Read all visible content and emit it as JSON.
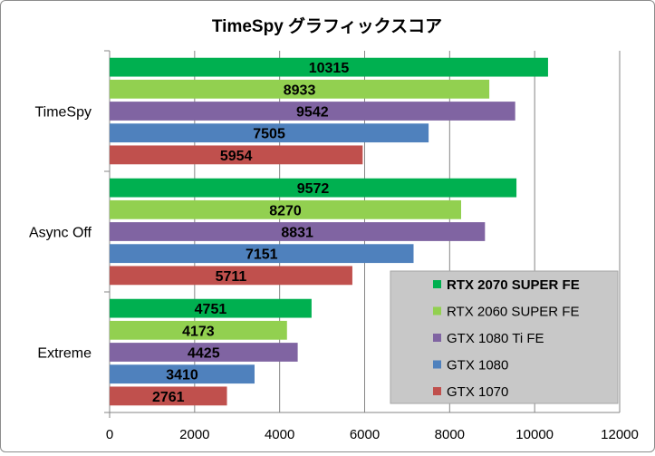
{
  "chart_data": {
    "type": "bar",
    "orientation": "horizontal",
    "title": "TimeSpy グラフィックスコア",
    "xlabel": "",
    "ylabel": "",
    "categories": [
      "TimeSpy",
      "Async Off",
      "Extreme"
    ],
    "xlim": [
      0,
      12000
    ],
    "xticks": [
      "0",
      "2000",
      "4000",
      "6000",
      "8000",
      "10000",
      "12000"
    ],
    "grid": "vertical",
    "legend_position": "bottom-right",
    "series": [
      {
        "name": "RTX 2070 SUPER FE",
        "color": "#00b050",
        "bold": true,
        "values": [
          10315,
          9572,
          4751
        ]
      },
      {
        "name": "RTX 2060 SUPER FE",
        "color": "#92d050",
        "bold": false,
        "values": [
          8933,
          8270,
          4173
        ]
      },
      {
        "name": "GTX 1080 Ti FE",
        "color": "#8064a2",
        "bold": false,
        "values": [
          9542,
          8831,
          4425
        ]
      },
      {
        "name": "GTX 1080",
        "color": "#4f81bd",
        "bold": false,
        "values": [
          7505,
          7151,
          3410
        ]
      },
      {
        "name": "GTX 1070",
        "color": "#c0504d",
        "bold": false,
        "values": [
          5954,
          5711,
          2761
        ]
      }
    ]
  }
}
